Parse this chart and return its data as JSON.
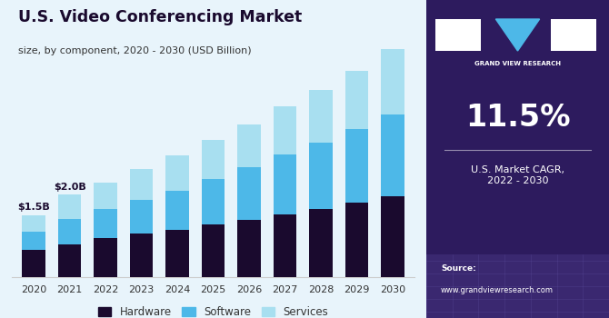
{
  "years": [
    2020,
    2021,
    2022,
    2023,
    2024,
    2025,
    2026,
    2027,
    2028,
    2029,
    2030
  ],
  "hardware": [
    0.65,
    0.78,
    0.95,
    1.05,
    1.15,
    1.28,
    1.38,
    1.52,
    1.65,
    1.8,
    1.95
  ],
  "software": [
    0.45,
    0.62,
    0.7,
    0.82,
    0.95,
    1.1,
    1.28,
    1.45,
    1.62,
    1.8,
    2.0
  ],
  "services": [
    0.4,
    0.6,
    0.65,
    0.75,
    0.85,
    0.95,
    1.05,
    1.18,
    1.28,
    1.42,
    1.6
  ],
  "color_hardware": "#1a0a2e",
  "color_software": "#4db8e8",
  "color_services": "#a8dff0",
  "color_background_chart": "#e8f4fb",
  "color_background_panel": "#2d1b5e",
  "title_main": "U.S. Video Conferencing Market",
  "title_sub": "size, by component, 2020 - 2030 (USD Billion)",
  "annotation_2020": "$1.5B",
  "annotation_2021": "$2.0B",
  "cagr_text": "11.5%",
  "cagr_label": "U.S. Market CAGR,\n2022 - 2030",
  "source_line1": "Source:",
  "source_line2": "www.grandviewresearch.com",
  "legend_labels": [
    "Hardware",
    "Software",
    "Services"
  ]
}
